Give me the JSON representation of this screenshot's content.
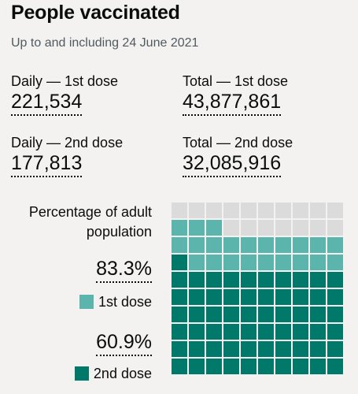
{
  "title": "People vaccinated",
  "subtitle": "Up to and including 24 June 2021",
  "stats": {
    "daily_first": {
      "label": "Daily — 1st dose",
      "value": "221,534"
    },
    "total_first": {
      "label": "Total — 1st dose",
      "value": "43,877,861"
    },
    "daily_second": {
      "label": "Daily — 2nd dose",
      "value": "177,813"
    },
    "total_second": {
      "label": "Total — 2nd dose",
      "value": "32,085,916"
    }
  },
  "waffle": {
    "label": "Percentage of adult population",
    "first_dose_percent": "83.3%",
    "second_dose_percent": "60.9%",
    "legend_first": "1st dose",
    "legend_second": "2nd dose",
    "first_dose_value": 83.3,
    "second_dose_value": 60.9,
    "colors": {
      "first": "#5bb5ad",
      "second": "#00796b",
      "empty": "#dbdbdb"
    }
  }
}
